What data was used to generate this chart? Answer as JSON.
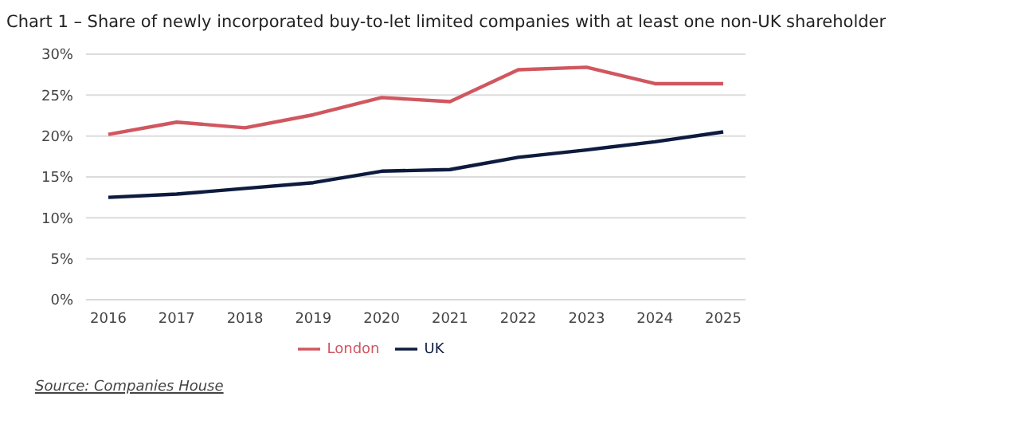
{
  "chart_data": {
    "type": "line",
    "title": "Chart 1 – Share of newly incorporated buy-to-let limited companies with at least one non-UK shareholder",
    "categories": [
      "2016",
      "2017",
      "2018",
      "2019",
      "2020",
      "2021",
      "2022",
      "2023",
      "2024",
      "2025"
    ],
    "series": [
      {
        "name": "UK",
        "color": "#0d1b3e",
        "values": [
          12.5,
          12.9,
          13.6,
          14.3,
          15.7,
          15.9,
          17.4,
          18.3,
          19.3,
          20.5
        ]
      },
      {
        "name": "London",
        "color": "#d0575f",
        "values": [
          20.2,
          21.7,
          21.0,
          22.6,
          24.7,
          24.2,
          28.1,
          28.4,
          26.4,
          26.4
        ]
      }
    ],
    "ylim": [
      0,
      30
    ],
    "yticks": [
      {
        "value": 0,
        "label": "0%"
      },
      {
        "value": 5,
        "label": "5%"
      },
      {
        "value": 10,
        "label": "10%"
      },
      {
        "value": 15,
        "label": "15%"
      },
      {
        "value": 20,
        "label": "20%"
      },
      {
        "value": 25,
        "label": "25%"
      },
      {
        "value": 30,
        "label": "30%"
      }
    ],
    "grid": "y",
    "legend": "bottom",
    "marker": "none",
    "line_style": "solid",
    "annotations": [
      "Source: Companies House"
    ]
  }
}
